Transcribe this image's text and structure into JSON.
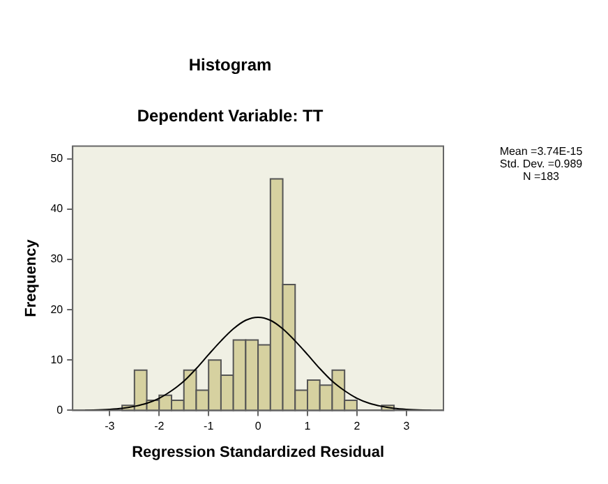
{
  "chart_data": {
    "type": "histogram",
    "title": "Histogram",
    "subtitle": "Dependent Variable: TT",
    "xlabel": "Regression Standardized Residual",
    "ylabel": "Frequency",
    "bins": [
      -2.75,
      -2.5,
      -2.25,
      -2.0,
      -1.75,
      -1.5,
      -1.25,
      -1.0,
      -0.75,
      -0.5,
      -0.25,
      0,
      0.25,
      0.5,
      0.75,
      1.0,
      1.25,
      1.5,
      1.75,
      2.0,
      2.5,
      2.75
    ],
    "values": [
      1,
      8,
      2,
      3,
      2,
      8,
      4,
      10,
      7,
      14,
      14,
      13,
      46,
      25,
      4,
      6,
      5,
      8,
      2,
      0,
      1
    ],
    "color": "#d6d1a0",
    "series": [
      {
        "type": "line",
        "color": "#000000",
        "x": [
          -3.5,
          -3,
          -2.75,
          -2.5,
          -2.25,
          -2,
          -1.75,
          -1.5,
          -1.25,
          -1,
          -0.75,
          -0.5,
          -0.25,
          0,
          0.25,
          0.5,
          0.75,
          1,
          1.25,
          1.5,
          1.75,
          2,
          2.25,
          2.5,
          2.75,
          3,
          3.5
        ],
        "values": [
          0,
          0.2,
          0.4,
          0.8,
          1.4,
          2.4,
          3.9,
          5.8,
          8.3,
          11.1,
          13.8,
          16.2,
          17.9,
          18.5,
          17.9,
          16.2,
          13.8,
          11.1,
          8.3,
          5.8,
          3.9,
          2.4,
          1.4,
          0.8,
          0.4,
          0.2,
          0
        ]
      }
    ],
    "xlim": [
      -3.75,
      3.75
    ],
    "xticks": [
      -3,
      -2,
      -1,
      0,
      1,
      2,
      3
    ],
    "ylim": [
      0,
      52.5
    ],
    "yticks": [
      0,
      10,
      20,
      30,
      40,
      50
    ],
    "grid": false,
    "legend": false,
    "annotations": [
      "Mean =3.74E-15",
      "Std. Dev. =0.989",
      "N =183"
    ]
  }
}
